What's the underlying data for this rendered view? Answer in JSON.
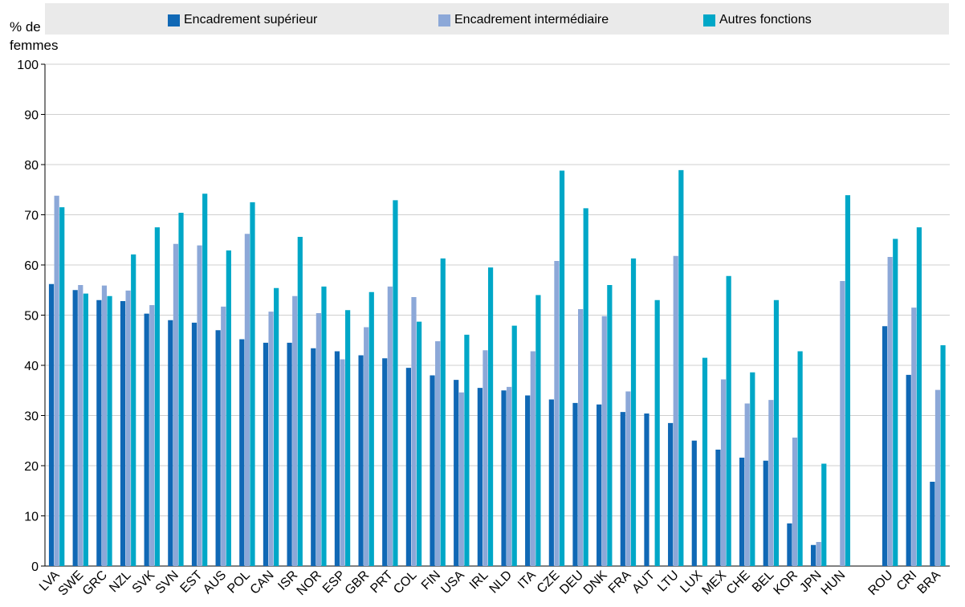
{
  "chart_data": {
    "type": "bar",
    "ylabel_lines": [
      "% de",
      "femmes"
    ],
    "ylim": [
      0,
      100
    ],
    "yticks": [
      0,
      10,
      20,
      30,
      40,
      50,
      60,
      70,
      80,
      90,
      100
    ],
    "grid": true,
    "legend_placement": "top",
    "categories": [
      "LVA",
      "SWE",
      "GRC",
      "NZL",
      "SVK",
      "SVN",
      "EST",
      "AUS",
      "POL",
      "CAN",
      "ISR",
      "NOR",
      "ESP",
      "GBR",
      "PRT",
      "COL",
      "FIN",
      "USA",
      "IRL",
      "NLD",
      "ITA",
      "CZE",
      "DEU",
      "DNK",
      "FRA",
      "AUT",
      "LTU",
      "LUX",
      "MEX",
      "CHE",
      "BEL",
      "KOR",
      "JPN",
      "HUN",
      "ROU",
      "CRI",
      "BRA"
    ],
    "series": [
      {
        "name": "Encadrement supérieur",
        "color": "#1068b5",
        "values": [
          56.2,
          55.0,
          53.0,
          52.8,
          50.3,
          49.0,
          48.5,
          47.0,
          45.2,
          44.5,
          44.5,
          43.4,
          42.8,
          42.0,
          41.4,
          39.5,
          38.0,
          37.1,
          35.5,
          35.0,
          34.0,
          33.2,
          32.5,
          32.2,
          30.7,
          30.4,
          28.5,
          25.0,
          23.2,
          21.6,
          21.0,
          8.5,
          4.2,
          null,
          47.8,
          38.1,
          16.8
        ]
      },
      {
        "name": "Encadrement intermédiaire",
        "color": "#8ca8d8",
        "values": [
          73.8,
          56.0,
          55.9,
          54.9,
          52.0,
          64.2,
          63.9,
          51.7,
          66.2,
          50.7,
          53.8,
          50.4,
          41.2,
          47.6,
          55.7,
          53.6,
          44.8,
          34.6,
          43.0,
          35.7,
          42.8,
          60.8,
          51.2,
          49.8,
          34.8,
          null,
          61.8,
          null,
          37.2,
          32.4,
          33.1,
          25.6,
          4.8,
          56.8,
          61.6,
          51.5,
          35.1
        ]
      },
      {
        "name": "Autres fonctions",
        "color": "#00a7c7",
        "values": [
          71.5,
          54.3,
          53.8,
          62.1,
          67.5,
          70.4,
          74.2,
          62.9,
          72.5,
          55.4,
          65.6,
          55.7,
          51.0,
          54.6,
          72.9,
          48.7,
          61.3,
          46.1,
          59.5,
          47.9,
          54.0,
          78.8,
          71.3,
          56.0,
          61.3,
          53.0,
          78.9,
          41.5,
          57.8,
          38.6,
          53.0,
          42.8,
          20.4,
          73.9,
          65.2,
          67.5,
          44.0
        ]
      }
    ]
  }
}
